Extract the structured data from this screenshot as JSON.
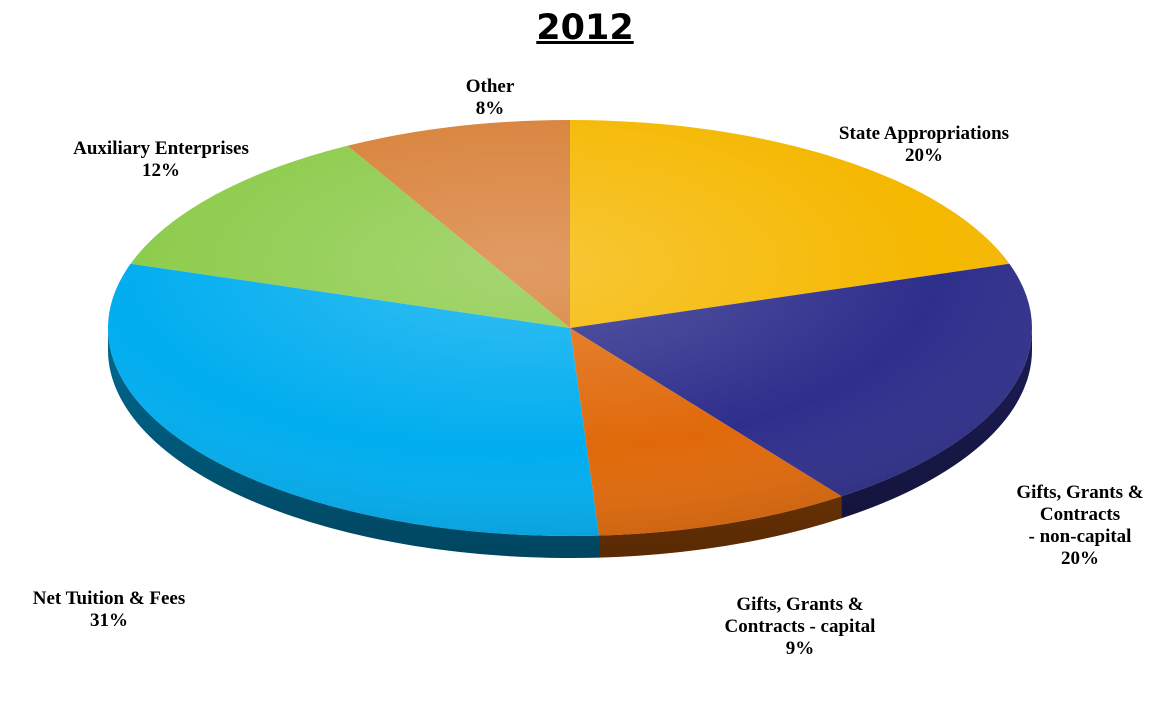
{
  "chart_data": {
    "type": "pie",
    "title": "2012",
    "slices": [
      {
        "name": "State Appropriations",
        "label_lines": [
          "State Appropriations"
        ],
        "value": 20,
        "value_label": "20%",
        "color": "#F5B800"
      },
      {
        "name": "Gifts, Grants & Contracts - non-capital",
        "label_lines": [
          "Gifts, Grants &",
          "Contracts",
          "- non-capital"
        ],
        "value": 20,
        "value_label": "20%",
        "color": "#2E2E8C"
      },
      {
        "name": "Gifts, Grants & Contracts - capital",
        "label_lines": [
          "Gifts, Grants &",
          "Contracts - capital"
        ],
        "value": 9,
        "value_label": "9%",
        "color": "#E0690A"
      },
      {
        "name": "Net Tuition & Fees",
        "label_lines": [
          "Net Tuition & Fees"
        ],
        "value": 31,
        "value_label": "31%",
        "color": "#00ADEF"
      },
      {
        "name": "Auxiliary Enterprises",
        "label_lines": [
          "Auxiliary Enterprises"
        ],
        "value": 12,
        "value_label": "12%",
        "color": "#8CCB4A"
      },
      {
        "name": "Other",
        "label_lines": [
          "Other"
        ],
        "value": 8,
        "value_label": "8%",
        "color": "#D88038"
      }
    ],
    "legend": "none",
    "style": "3d"
  }
}
